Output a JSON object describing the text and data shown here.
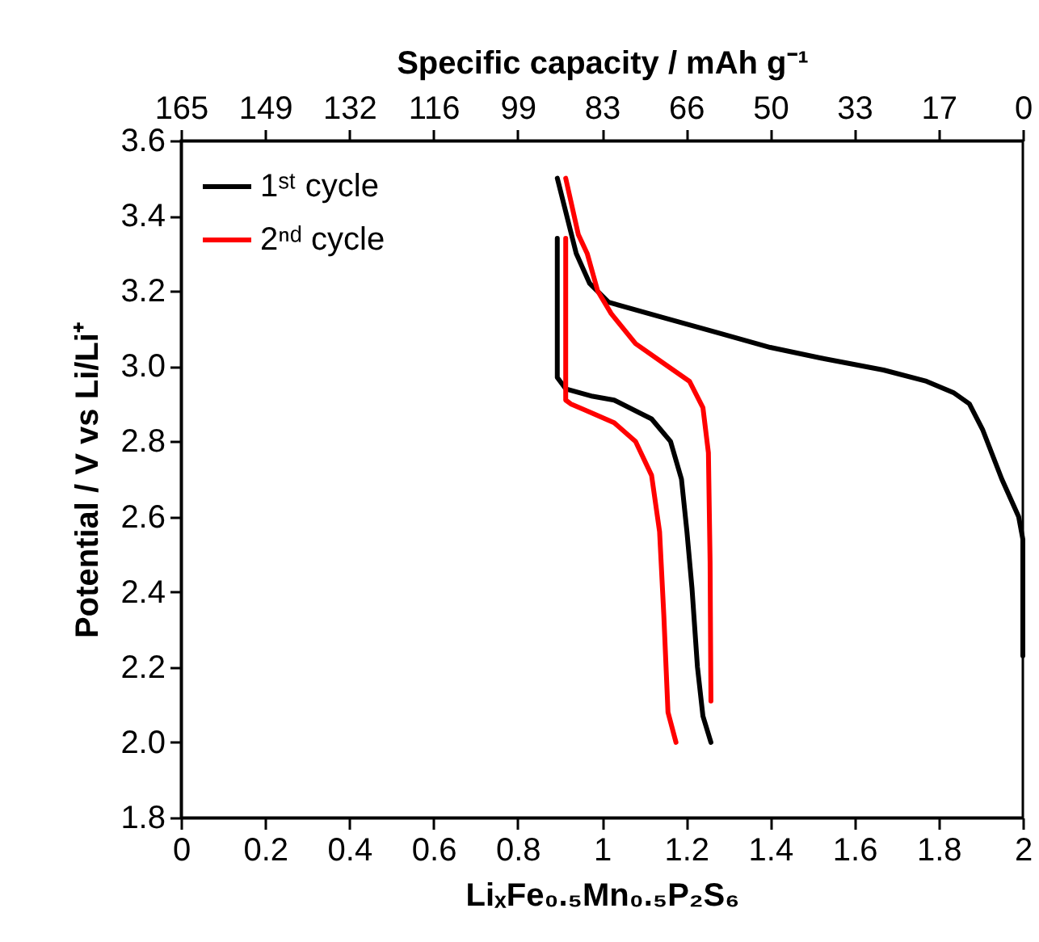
{
  "chart_data": {
    "type": "line",
    "xlabel": "LiₓFe₀.₅Mn₀.₅P₂S₆",
    "ylabel": "Potential / V vs Li/Li⁺",
    "x2label": "Specific capacity / mAh g⁻¹",
    "xlim": [
      0,
      2
    ],
    "xticks": [
      0,
      0.2,
      0.4,
      0.6,
      0.8,
      1,
      1.2,
      1.4,
      1.6,
      1.8,
      2
    ],
    "ylim": [
      1.8,
      3.6
    ],
    "yticks": [
      1.8,
      {
        "value": 2,
        "label": "2.0"
      },
      2.2,
      2.4,
      2.6,
      2.8,
      {
        "value": 3,
        "label": "3.0"
      },
      3.2,
      3.4,
      3.6
    ],
    "x2lim": [
      165,
      0
    ],
    "x2ticks": [
      165,
      {
        "value": 148.5,
        "label": "149"
      },
      132,
      {
        "value": 115.5,
        "label": "116"
      },
      99,
      {
        "value": 82.5,
        "label": "83"
      },
      66,
      {
        "value": 49.5,
        "label": "50"
      },
      33,
      {
        "value": 16.5,
        "label": "17"
      },
      0
    ],
    "legend": "top left",
    "line_style": "solid",
    "marker": "none",
    "series": [
      {
        "name": "1ˢᵗ cycle",
        "color": "#000000",
        "x": [
          2.0,
          2.0,
          1.99,
          1.95,
          1.905,
          1.873,
          1.835,
          1.771,
          1.669,
          1.528,
          1.4,
          1.272,
          1.144,
          1.016,
          0.971,
          0.939,
          0.894,
          null,
          0.894,
          0.894,
          0.914,
          0.978,
          1.029,
          1.118,
          1.163,
          1.189,
          1.202,
          1.214,
          1.227,
          1.24,
          1.259
        ],
        "values": [
          2.23,
          2.54,
          2.6,
          2.7,
          2.83,
          2.9,
          2.93,
          2.96,
          2.99,
          3.02,
          3.05,
          3.09,
          3.13,
          3.17,
          3.22,
          3.3,
          3.5,
          null,
          3.34,
          2.97,
          2.94,
          2.92,
          2.91,
          2.86,
          2.8,
          2.7,
          2.56,
          2.41,
          2.2,
          2.07,
          2.0
        ]
      },
      {
        "name": "2ⁿᵈ cycle",
        "color": "#ff0000",
        "x": [
          0.914,
          0.944,
          0.965,
          0.99,
          1.022,
          1.08,
          1.144,
          1.208,
          1.24,
          1.253,
          1.257,
          1.259,
          null,
          0.914,
          0.914,
          0.926,
          1.029,
          1.08,
          1.118,
          1.137,
          1.147,
          1.157,
          1.176
        ],
        "values": [
          3.5,
          3.35,
          3.3,
          3.2,
          3.14,
          3.06,
          3.01,
          2.96,
          2.89,
          2.77,
          2.48,
          2.11,
          null,
          3.34,
          2.91,
          2.9,
          2.85,
          2.8,
          2.71,
          2.56,
          2.34,
          2.08,
          2.0
        ]
      }
    ]
  }
}
